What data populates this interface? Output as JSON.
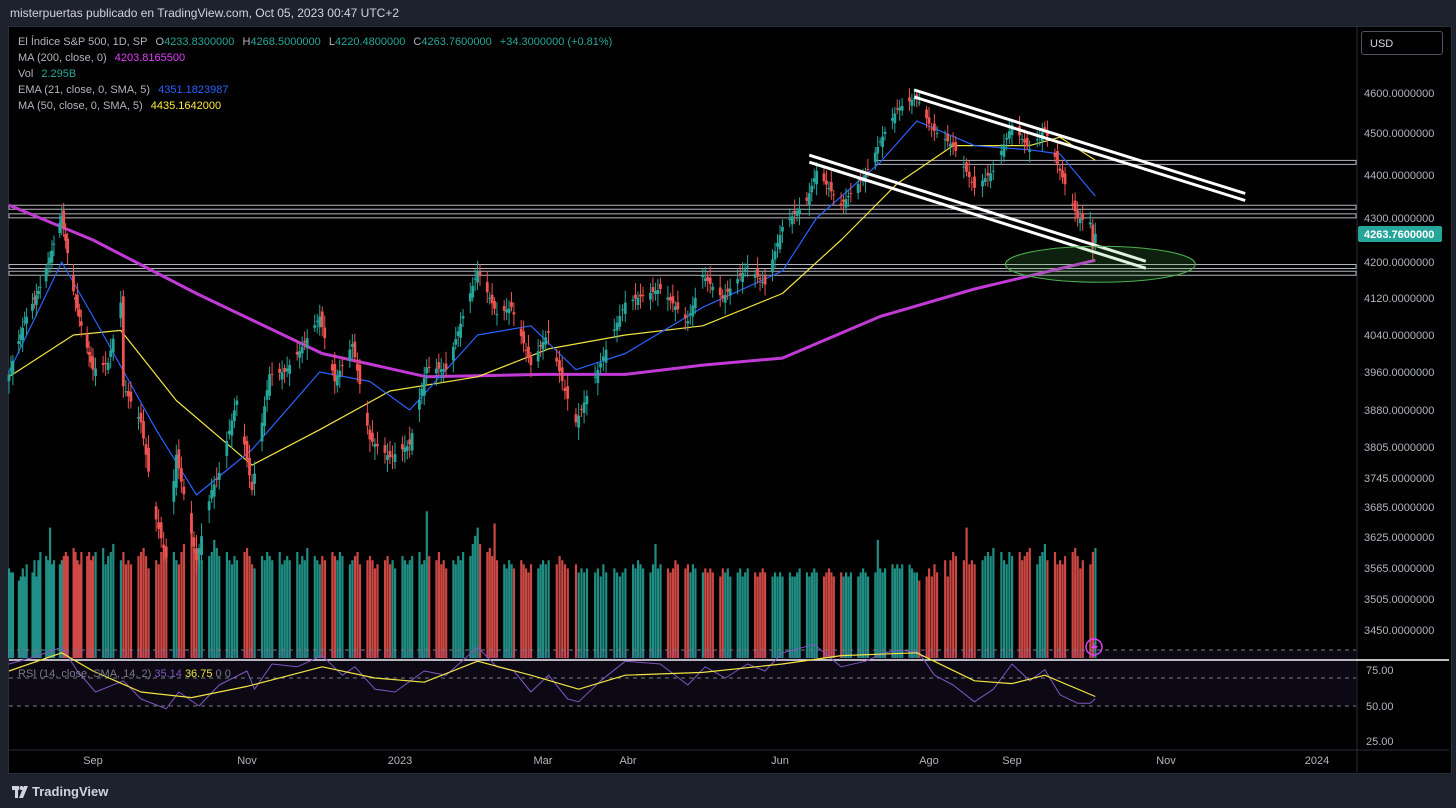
{
  "header": {
    "publisher_text": "misterpuertas publicado en TradingView.com, Oct 05, 2023 00:47 UTC+2"
  },
  "footer": {
    "brand": "TradingView"
  },
  "legend": {
    "symbol": "El Índice S&P 500, 1D, SP",
    "open_label": "O",
    "open": "4233.8300000",
    "high_label": "H",
    "high": "4268.5000000",
    "low_label": "L",
    "low": "4220.4800000",
    "close_label": "C",
    "close": "4263.7600000",
    "change": "+34.3000000 (+0.81%)",
    "ma200_label": "MA (200, close, 0)",
    "ma200_value": "4203.8165500",
    "vol_label": "Vol",
    "vol_value": "2.295B",
    "ema21_label": "EMA (21, close, 0, SMA, 5)",
    "ema21_value": "4351.1823987",
    "ma50_label": "MA (50, close, 0, SMA, 5)",
    "ma50_value": "4435.1642000",
    "rsi_label": "RSI (14, close, SMA, 14, 2)",
    "rsi_value": "35.14",
    "rsi_ma_value": "36.75",
    "rsi_zero_1": "0",
    "rsi_zero_2": "0"
  },
  "currency": "USD",
  "colors": {
    "up": "#26a69a",
    "down": "#ef5350",
    "ema": "#2962ff",
    "ma50": "#f0e442",
    "ma200": "#c23ad6",
    "rsi": "#7e57c2",
    "rsi_ma": "#f0e442",
    "ellipse": "#4caf50"
  },
  "chart_data": {
    "type": "candlestick",
    "title": "El Índice S&P 500, 1D, SP",
    "price_axis_ticks": [
      4600,
      4500,
      4400,
      4300,
      4200,
      4120,
      4040,
      3960,
      3880,
      3805,
      3745,
      3685,
      3625,
      3565,
      3505,
      3450
    ],
    "price_axis_labels": [
      "4600.0000000",
      "4500.0000000",
      "4400.0000000",
      "4300.0000000",
      "4200.0000000",
      "4120.0000000",
      "4040.0000000",
      "3960.0000000",
      "3880.0000000",
      "3805.0000000",
      "3745.0000000",
      "3685.0000000",
      "3625.0000000",
      "3565.0000000",
      "3505.0000000",
      "3450.0000000"
    ],
    "last_price_label": "4263.7600000",
    "time_axis_labels": [
      {
        "label": "Sep",
        "date": "2022-09-01"
      },
      {
        "label": "Nov",
        "date": "2022-11-01"
      },
      {
        "label": "2023",
        "date": "2023-01-01"
      },
      {
        "label": "Mar",
        "date": "2023-03-01"
      },
      {
        "label": "Abr",
        "date": "2023-04-01"
      },
      {
        "label": "Jun",
        "date": "2023-06-01"
      },
      {
        "label": "Ago",
        "date": "2023-08-01"
      },
      {
        "label": "Sep",
        "date": "2023-09-01"
      },
      {
        "label": "Nov",
        "date": "2023-11-01"
      },
      {
        "label": "2024",
        "date": "2024-01-01"
      }
    ],
    "price_path": [
      [
        "2022-07-20",
        3955
      ],
      [
        "2022-07-28",
        4070
      ],
      [
        "2022-08-05",
        4145
      ],
      [
        "2022-08-10",
        4210
      ],
      [
        "2022-08-16",
        4305
      ],
      [
        "2022-08-22",
        4135
      ],
      [
        "2022-08-26",
        4060
      ],
      [
        "2022-09-01",
        3965
      ],
      [
        "2022-09-07",
        3980
      ],
      [
        "2022-09-12",
        4110
      ],
      [
        "2022-09-13",
        3930
      ],
      [
        "2022-09-20",
        3855
      ],
      [
        "2022-09-26",
        3660
      ],
      [
        "2022-09-30",
        3585
      ],
      [
        "2022-10-04",
        3790
      ],
      [
        "2022-10-12",
        3580
      ],
      [
        "2022-10-18",
        3720
      ],
      [
        "2022-10-21",
        3755
      ],
      [
        "2022-10-28",
        3900
      ],
      [
        "2022-11-03",
        3720
      ],
      [
        "2022-11-10",
        3955
      ],
      [
        "2022-11-16",
        3960
      ],
      [
        "2022-11-22",
        4005
      ],
      [
        "2022-11-30",
        4080
      ],
      [
        "2022-12-06",
        3940
      ],
      [
        "2022-12-13",
        4020
      ],
      [
        "2022-12-20",
        3820
      ],
      [
        "2022-12-28",
        3785
      ],
      [
        "2023-01-05",
        3810
      ],
      [
        "2023-01-12",
        3970
      ],
      [
        "2023-01-20",
        3965
      ],
      [
        "2023-02-02",
        4180
      ],
      [
        "2023-02-10",
        4085
      ],
      [
        "2023-02-16",
        4100
      ],
      [
        "2023-02-24",
        3975
      ],
      [
        "2023-03-03",
        4045
      ],
      [
        "2023-03-09",
        3920
      ],
      [
        "2023-03-13",
        3855
      ],
      [
        "2023-03-20",
        3950
      ],
      [
        "2023-03-31",
        4110
      ],
      [
        "2023-04-14",
        4140
      ],
      [
        "2023-04-25",
        4070
      ],
      [
        "2023-05-01",
        4170
      ],
      [
        "2023-05-09",
        4120
      ],
      [
        "2023-05-19",
        4190
      ],
      [
        "2023-05-26",
        4150
      ],
      [
        "2023-06-02",
        4280
      ],
      [
        "2023-06-12",
        4340
      ],
      [
        "2023-06-16",
        4410
      ],
      [
        "2023-06-26",
        4330
      ],
      [
        "2023-07-06",
        4400
      ],
      [
        "2023-07-12",
        4480
      ],
      [
        "2023-07-19",
        4560
      ],
      [
        "2023-07-27",
        4590
      ],
      [
        "2023-08-02",
        4510
      ],
      [
        "2023-08-10",
        4470
      ],
      [
        "2023-08-18",
        4370
      ],
      [
        "2023-08-25",
        4410
      ],
      [
        "2023-09-01",
        4520
      ],
      [
        "2023-09-08",
        4460
      ],
      [
        "2023-09-14",
        4510
      ],
      [
        "2023-09-20",
        4410
      ],
      [
        "2023-09-27",
        4300
      ],
      [
        "2023-10-02",
        4290
      ],
      [
        "2023-10-03",
        4230
      ],
      [
        "2023-10-04",
        4263.76
      ]
    ],
    "ema21_path": [
      [
        "2022-07-20",
        3960
      ],
      [
        "2022-08-16",
        4200
      ],
      [
        "2022-09-01",
        4080
      ],
      [
        "2022-09-26",
        3840
      ],
      [
        "2022-10-12",
        3710
      ],
      [
        "2022-11-03",
        3800
      ],
      [
        "2022-11-30",
        3960
      ],
      [
        "2022-12-20",
        3940
      ],
      [
        "2023-01-05",
        3880
      ],
      [
        "2023-02-02",
        4040
      ],
      [
        "2023-02-24",
        4060
      ],
      [
        "2023-03-13",
        3965
      ],
      [
        "2023-03-31",
        4000
      ],
      [
        "2023-05-01",
        4100
      ],
      [
        "2023-06-02",
        4180
      ],
      [
        "2023-06-16",
        4300
      ],
      [
        "2023-07-12",
        4430
      ],
      [
        "2023-07-27",
        4530
      ],
      [
        "2023-08-18",
        4470
      ],
      [
        "2023-09-08",
        4460
      ],
      [
        "2023-09-20",
        4450
      ],
      [
        "2023-10-04",
        4351
      ]
    ],
    "ma50_path": [
      [
        "2022-07-20",
        3950
      ],
      [
        "2022-08-22",
        4040
      ],
      [
        "2022-09-12",
        4050
      ],
      [
        "2022-10-04",
        3900
      ],
      [
        "2022-11-03",
        3770
      ],
      [
        "2022-11-30",
        3840
      ],
      [
        "2022-12-28",
        3920
      ],
      [
        "2023-02-02",
        3950
      ],
      [
        "2023-03-03",
        4010
      ],
      [
        "2023-03-31",
        4040
      ],
      [
        "2023-05-01",
        4060
      ],
      [
        "2023-06-02",
        4130
      ],
      [
        "2023-06-26",
        4250
      ],
      [
        "2023-07-19",
        4380
      ],
      [
        "2023-08-10",
        4470
      ],
      [
        "2023-09-08",
        4470
      ],
      [
        "2023-09-20",
        4490
      ],
      [
        "2023-10-04",
        4435
      ]
    ],
    "ma200_path": [
      [
        "2022-07-20",
        4330
      ],
      [
        "2022-09-01",
        4250
      ],
      [
        "2022-10-12",
        4130
      ],
      [
        "2022-12-01",
        4000
      ],
      [
        "2023-01-12",
        3950
      ],
      [
        "2023-03-01",
        3955
      ],
      [
        "2023-03-31",
        3955
      ],
      [
        "2023-05-01",
        3975
      ],
      [
        "2023-06-02",
        3990
      ],
      [
        "2023-07-12",
        4080
      ],
      [
        "2023-08-18",
        4140
      ],
      [
        "2023-10-04",
        4204
      ]
    ],
    "horizontal_levels": [
      4430,
      4325,
      4305,
      4190,
      4175
    ],
    "level_start": {
      "4430": "2023-07-10"
    },
    "channel_upper": [
      [
        "2023-07-26",
        4600
      ],
      [
        "2023-12-03",
        4350
      ]
    ],
    "channel_lower": [
      [
        "2023-06-13",
        4440
      ],
      [
        "2023-10-24",
        4195
      ]
    ],
    "ellipse_center": [
      "2023-10-06",
      4195
    ],
    "volume": {
      "scale_max": 4.0,
      "values_billions": [
        2.2,
        2.1,
        2.1,
        1.9,
        2.0,
        2.2,
        2.0,
        2.3,
        2.1,
        2.4,
        2.0,
        2.4,
        2.6,
        2.5,
        2.4,
        3.2,
        2.3,
        2.4,
        2.3,
        2.4,
        2.5,
        2.6,
        2.5,
        2.7,
        2.6,
        2.4,
        2.3,
        2.6,
        2.5,
        2.6,
        2.4,
        2.5,
        2.6,
        2.7,
        2.3,
        2.5,
        2.6,
        2.8,
        2.4,
        2.6,
        2.3,
        2.4,
        2.3,
        2.5,
        2.6,
        2.7,
        2.5,
        2.2,
        2.4,
        2.3,
        2.6,
        2.7,
        2.5,
        2.6,
        2.4,
        2.3,
        2.6,
        2.8,
        3.3,
        2.7,
        2.5,
        2.6,
        2.4,
        2.5,
        2.6,
        2.9,
        2.7,
        2.5,
        2.6,
        2.4,
        2.3,
        2.5,
        2.4,
        2.6,
        2.7,
        2.5,
        2.3,
        2.2,
        2.5,
        2.4,
        2.6,
        2.5,
        2.4,
        2.6,
        2.3,
        2.4,
        2.5,
        2.4,
        2.6,
        2.3,
        2.5,
        2.4,
        2.7,
        2.5,
        2.4,
        2.3,
        2.5,
        2.4,
        2.6,
        2.5,
        2.4,
        2.6,
        2.5,
        2.3,
        2.4,
        2.5,
        2.6,
        2.3,
        2.4,
        2.5,
        2.4,
        2.2,
        2.3,
        2.4,
        2.5,
        2.3,
        2.4,
        2.2,
        2.5,
        2.4,
        2.3,
        2.4,
        2.5,
        2.6,
        2.3,
        2.4,
        3.6,
        2.5,
        2.4,
        2.6,
        2.3,
        2.4,
        2.2,
        2.4,
        2.3,
        2.5,
        2.4,
        2.6,
        2.5,
        2.8,
        3.0,
        3.2,
        2.8,
        2.6,
        2.7,
        2.5,
        3.3,
        2.4,
        2.3,
        2.2,
        2.4,
        2.3,
        2.2,
        2.4,
        2.3,
        2.2,
        2.1,
        2.3,
        2.2,
        2.3,
        2.4,
        2.3,
        2.4,
        2.3,
        2.5,
        2.4,
        2.3,
        2.2,
        2.3,
        2.1,
        2.2,
        2.1,
        2.2,
        2.1,
        2.2,
        2.0,
        2.3,
        2.1,
        2.2,
        2.1,
        2.0,
        2.1,
        2.2,
        2.3,
        2.2,
        2.4,
        2.3,
        2.2,
        2.1,
        2.3,
        2.8,
        2.2,
        2.3,
        2.2,
        2.1,
        2.2,
        2.4,
        2.3,
        2.2,
        2.3,
        2.1,
        2.3,
        2.2,
        2.1,
        2.2,
        2.1,
        2.2,
        2.1,
        2.0,
        2.2,
        2.1,
        2.2,
        2.0,
        2.1,
        2.2,
        2.0,
        2.1,
        2.2,
        2.1,
        2.0,
        2.1,
        2.2,
        2.1,
        2.0,
        2.1,
        2.0,
        2.1,
        2.0,
        2.1,
        2.0,
        2.0,
        2.1,
        2.2,
        2.1,
        2.0,
        2.1,
        2.2,
        2.1,
        2.0,
        2.1,
        2.2,
        2.1,
        2.0,
        2.1,
        2.0,
        2.1,
        2.0,
        2.1,
        2.0,
        2.1,
        2.2,
        2.1,
        2.0,
        2.1,
        2.9,
        2.2,
        2.1,
        2.2,
        2.3,
        2.2,
        2.3,
        2.2,
        2.3,
        2.295
      ]
    },
    "rsi": {
      "levels": [
        70,
        50,
        30
      ],
      "axis_labels": [
        "75.00",
        "50.00",
        "25.00"
      ],
      "rsi_path": [
        [
          "2022-07-20",
          60
        ],
        [
          "2022-08-02",
          65
        ],
        [
          "2022-08-16",
          72
        ],
        [
          "2022-08-24",
          55
        ],
        [
          "2022-09-02",
          40
        ],
        [
          "2022-09-13",
          48
        ],
        [
          "2022-09-20",
          35
        ],
        [
          "2022-09-30",
          28
        ],
        [
          "2022-10-05",
          40
        ],
        [
          "2022-10-13",
          30
        ],
        [
          "2022-10-21",
          45
        ],
        [
          "2022-11-01",
          55
        ],
        [
          "2022-11-04",
          42
        ],
        [
          "2022-11-11",
          60
        ],
        [
          "2022-11-21",
          58
        ],
        [
          "2022-12-01",
          66
        ],
        [
          "2022-12-09",
          52
        ],
        [
          "2022-12-14",
          58
        ],
        [
          "2022-12-22",
          42
        ],
        [
          "2022-12-30",
          40
        ],
        [
          "2023-01-11",
          55
        ],
        [
          "2023-01-20",
          52
        ],
        [
          "2023-02-02",
          72
        ],
        [
          "2023-02-10",
          58
        ],
        [
          "2023-02-17",
          55
        ],
        [
          "2023-02-24",
          40
        ],
        [
          "2023-03-03",
          52
        ],
        [
          "2023-03-10",
          35
        ],
        [
          "2023-03-14",
          33
        ],
        [
          "2023-03-22",
          48
        ],
        [
          "2023-03-31",
          62
        ],
        [
          "2023-04-14",
          60
        ],
        [
          "2023-04-25",
          45
        ],
        [
          "2023-05-02",
          58
        ],
        [
          "2023-05-10",
          50
        ],
        [
          "2023-05-19",
          60
        ],
        [
          "2023-05-26",
          55
        ],
        [
          "2023-06-02",
          68
        ],
        [
          "2023-06-15",
          74
        ],
        [
          "2023-06-26",
          58
        ],
        [
          "2023-07-06",
          62
        ],
        [
          "2023-07-14",
          68
        ],
        [
          "2023-07-20",
          70
        ],
        [
          "2023-07-28",
          68
        ],
        [
          "2023-08-03",
          52
        ],
        [
          "2023-08-10",
          45
        ],
        [
          "2023-08-18",
          33
        ],
        [
          "2023-08-25",
          42
        ],
        [
          "2023-09-01",
          60
        ],
        [
          "2023-09-08",
          48
        ],
        [
          "2023-09-14",
          56
        ],
        [
          "2023-09-20",
          38
        ],
        [
          "2023-09-27",
          32
        ],
        [
          "2023-10-02",
          32
        ],
        [
          "2023-10-04",
          35.14
        ]
      ],
      "rsi_ma_path": [
        [
          "2022-07-20",
          55
        ],
        [
          "2022-08-16",
          68
        ],
        [
          "2022-09-01",
          55
        ],
        [
          "2022-09-20",
          40
        ],
        [
          "2022-10-10",
          36
        ],
        [
          "2022-11-01",
          44
        ],
        [
          "2022-12-01",
          58
        ],
        [
          "2022-12-22",
          50
        ],
        [
          "2023-01-11",
          47
        ],
        [
          "2023-02-02",
          62
        ],
        [
          "2023-02-24",
          52
        ],
        [
          "2023-03-14",
          42
        ],
        [
          "2023-03-31",
          52
        ],
        [
          "2023-05-01",
          54
        ],
        [
          "2023-06-02",
          60
        ],
        [
          "2023-06-26",
          66
        ],
        [
          "2023-07-27",
          68
        ],
        [
          "2023-08-18",
          48
        ],
        [
          "2023-09-01",
          46
        ],
        [
          "2023-09-14",
          52
        ],
        [
          "2023-10-04",
          36.75
        ]
      ]
    }
  }
}
